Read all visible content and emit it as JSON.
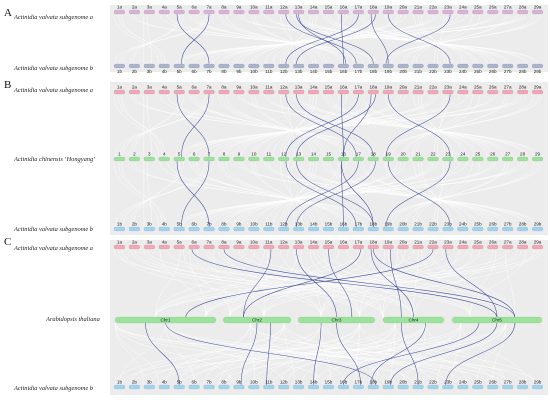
{
  "panels": [
    {
      "letter": "A",
      "rows": [
        {
          "key": "a",
          "label": "Actinidia valvata subgenome a",
          "chromosomes": [
            "1a",
            "2a",
            "3a",
            "4a",
            "5a",
            "6a",
            "7a",
            "8a",
            "9a",
            "10a",
            "11a",
            "12a",
            "13a",
            "14a",
            "15a",
            "16a",
            "17a",
            "18a",
            "19a",
            "20a",
            "21a",
            "22a",
            "23a",
            "24a",
            "25a",
            "26a",
            "27a",
            "28a",
            "29a"
          ],
          "color": "#d9b3d6",
          "label_color": "#222222"
        },
        {
          "key": "b",
          "label": "Actinidia valvata subgenome b",
          "chromosomes": [
            "1b",
            "2b",
            "3b",
            "4b",
            "5b",
            "6b",
            "7b",
            "8b",
            "9b",
            "10b",
            "11b",
            "12b",
            "13b",
            "14b",
            "15b",
            "16b",
            "17b",
            "18b",
            "19b",
            "20b",
            "21b",
            "22b",
            "23b",
            "24b",
            "25b",
            "26b",
            "27b",
            "28b",
            "29b"
          ],
          "color": "#aab4cc",
          "label_color": "#222222"
        }
      ],
      "links": [
        {
          "from": "5a",
          "to": "7b"
        },
        {
          "from": "7a",
          "to": "5b"
        },
        {
          "from": "12a",
          "to": "17b"
        },
        {
          "from": "13a",
          "to": "18b"
        },
        {
          "from": "17a",
          "to": "12b"
        },
        {
          "from": "18a",
          "to": "13b"
        },
        {
          "from": "16a",
          "to": "16b"
        },
        {
          "from": "19a",
          "to": "23b"
        },
        {
          "from": "23a",
          "to": "19b"
        },
        {
          "from": "18a",
          "to": "19b"
        },
        {
          "from": "13a",
          "to": "16b"
        }
      ]
    },
    {
      "letter": "B",
      "rows": [
        {
          "key": "a",
          "label": "Actinidia valvata subgenome a",
          "chromosomes": [
            "1a",
            "2a",
            "3a",
            "4a",
            "5a",
            "6a",
            "7a",
            "8a",
            "9a",
            "10a",
            "11a",
            "12a",
            "13a",
            "14a",
            "15a",
            "16a",
            "17a",
            "18a",
            "19a",
            "20a",
            "21a",
            "22a",
            "23a",
            "24a",
            "25a",
            "26a",
            "27a",
            "28a",
            "29a"
          ],
          "color": "#f2a7b6",
          "label_color": "#f7c9d3"
        },
        {
          "key": "h",
          "label": "Actinidia chinensis ‘Hongyang’",
          "chromosomes": [
            "1",
            "2",
            "3",
            "4",
            "5",
            "6",
            "7",
            "8",
            "9",
            "10",
            "11",
            "12",
            "13",
            "14",
            "15",
            "16",
            "17",
            "18",
            "19",
            "20",
            "21",
            "22",
            "23",
            "24",
            "25",
            "26",
            "27",
            "28",
            "29"
          ],
          "color": "#9be39b",
          "label_color": "#c9f2c9"
        },
        {
          "key": "b",
          "label": "Actinidia valvata subgenome b",
          "chromosomes": [
            "1b",
            "2b",
            "3b",
            "4b",
            "5b",
            "6b",
            "7b",
            "8b",
            "9b",
            "10b",
            "11b",
            "12b",
            "13b",
            "14b",
            "15b",
            "16b",
            "17b",
            "18b",
            "19b",
            "20b",
            "21b",
            "22b",
            "23b",
            "24b",
            "25b",
            "26b",
            "27b",
            "28b",
            "29b"
          ],
          "color": "#9fd3f0",
          "label_color": "#cde9f8"
        }
      ],
      "links_top": [
        {
          "from": "5a",
          "to": "7"
        },
        {
          "from": "7a",
          "to": "5"
        },
        {
          "from": "12a",
          "to": "17"
        },
        {
          "from": "13a",
          "to": "18"
        },
        {
          "from": "17a",
          "to": "12"
        },
        {
          "from": "18a",
          "to": "13"
        },
        {
          "from": "16a",
          "to": "16"
        },
        {
          "from": "19a",
          "to": "23"
        },
        {
          "from": "23a",
          "to": "19"
        },
        {
          "from": "18a",
          "to": "16"
        }
      ],
      "links_bottom": [
        {
          "from": "5",
          "to": "7b"
        },
        {
          "from": "7",
          "to": "5b"
        },
        {
          "from": "12",
          "to": "17b"
        },
        {
          "from": "13",
          "to": "18b"
        },
        {
          "from": "17",
          "to": "12b"
        },
        {
          "from": "18",
          "to": "13b"
        },
        {
          "from": "16",
          "to": "16b"
        },
        {
          "from": "19",
          "to": "23b"
        },
        {
          "from": "23",
          "to": "19b"
        },
        {
          "from": "16",
          "to": "18b"
        }
      ]
    },
    {
      "letter": "C",
      "rows": [
        {
          "key": "a",
          "label": "Actinidia valvata subgenome a",
          "chromosomes": [
            "1a",
            "2a",
            "3a",
            "4a",
            "5a",
            "6a",
            "7a",
            "8a",
            "9a",
            "10a",
            "11a",
            "12a",
            "13a",
            "14a",
            "15a",
            "16a",
            "17a",
            "18a",
            "19a",
            "20a",
            "21a",
            "22a",
            "23a",
            "24a",
            "25a",
            "26a",
            "27a",
            "28a",
            "29a"
          ],
          "color": "#f2a7b6",
          "label_color": "#f7c9d3"
        },
        {
          "key": "t",
          "label": "Arabidopsis thaliana",
          "chromosomes": [
            "Chr1",
            "Chr2",
            "Chr3",
            "Chr4",
            "Chr5"
          ],
          "color": "#9be39b",
          "label_color": "#c9f2c9"
        },
        {
          "key": "b",
          "label": "Actinidia valvata subgenome b",
          "chromosomes": [
            "1b",
            "2b",
            "3b",
            "4b",
            "5b",
            "6b",
            "7b",
            "8b",
            "9b",
            "10b",
            "11b",
            "12b",
            "13b",
            "14b",
            "15b",
            "16b",
            "17b",
            "18b",
            "19b",
            "20b",
            "21b",
            "22b",
            "23b",
            "24b",
            "25b",
            "26b",
            "27b",
            "28b",
            "29b"
          ],
          "color": "#9fd3f0",
          "label_color": "#cde9f8"
        }
      ],
      "links_top": [
        {
          "from": "6a",
          "to": "Chr5"
        },
        {
          "from": "8a",
          "to": "Chr5"
        },
        {
          "from": "11a",
          "to": "Chr2"
        },
        {
          "from": "13a",
          "to": "Chr3"
        },
        {
          "from": "15a",
          "to": "Chr3"
        },
        {
          "from": "17a",
          "to": "Chr2"
        },
        {
          "from": "18a",
          "to": "Chr4"
        },
        {
          "from": "18a",
          "to": "Chr5"
        },
        {
          "from": "19a",
          "to": "Chr4"
        },
        {
          "from": "23a",
          "to": "Chr5"
        },
        {
          "from": "22a",
          "to": "Chr1"
        }
      ],
      "links_bottom": [
        {
          "from": "Chr1",
          "to": "5b"
        },
        {
          "from": "Chr2",
          "to": "9b"
        },
        {
          "from": "Chr2",
          "to": "11b"
        },
        {
          "from": "Chr3",
          "to": "14b"
        },
        {
          "from": "Chr3",
          "to": "17b"
        },
        {
          "from": "Chr4",
          "to": "18b"
        },
        {
          "from": "Chr4",
          "to": "21b"
        },
        {
          "from": "Chr5",
          "to": "19b"
        },
        {
          "from": "Chr5",
          "to": "23b"
        },
        {
          "from": "Chr5",
          "to": "16b"
        },
        {
          "from": "Chr1",
          "to": "18b"
        }
      ]
    }
  ],
  "colors": {
    "background_band": "#ececec",
    "link": "#2b3c8f",
    "faint_link": "#ffffff"
  }
}
